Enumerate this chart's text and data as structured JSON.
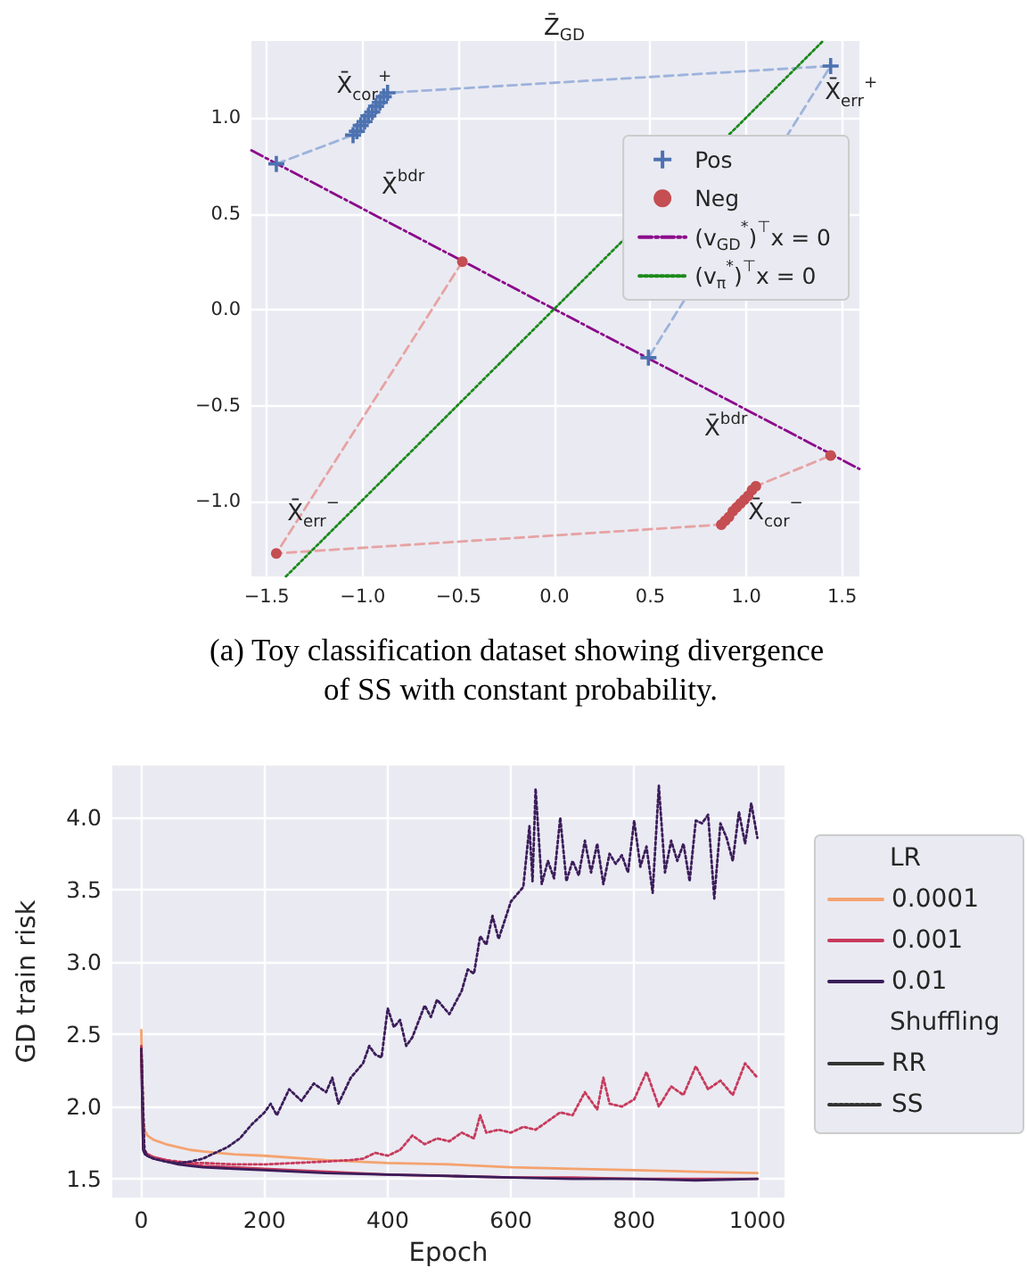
{
  "chart_data": [
    {
      "type": "scatter",
      "title": "Z̄$_{GD}$",
      "xlim": [
        -1.58,
        1.59
      ],
      "ylim": [
        -1.39,
        1.4
      ],
      "xticks": [
        {
          "value": -1.5,
          "label": "−1.5"
        },
        {
          "value": -1,
          "label": "−1.0"
        },
        {
          "value": -0.5,
          "label": "−0.5"
        },
        {
          "value": 0,
          "label": "0.0"
        },
        {
          "value": 0.5,
          "label": "0.5"
        },
        {
          "value": 1,
          "label": "1.0"
        },
        {
          "value": 1.5,
          "label": "1.5"
        }
      ],
      "yticks": [
        {
          "value": -1,
          "label": "−1.0"
        },
        {
          "value": -0.5,
          "label": "−0.5"
        },
        {
          "value": 0,
          "label": "0.0"
        },
        {
          "value": 0.5,
          "label": "0.5"
        },
        {
          "value": 1,
          "label": "1.0"
        }
      ],
      "grid": true,
      "legend": "top right",
      "series": [
        {
          "type": "line",
          "color": "#9db3dc",
          "line_style": "dashed",
          "marker": "none",
          "x": [
            -1.45,
            -1.05,
            -0.87,
            1.44,
            0.49
          ],
          "values": [
            0.76,
            0.91,
            1.13,
            1.27,
            -0.25
          ]
        },
        {
          "type": "line",
          "color": "#e6a3a3",
          "line_style": "dashed",
          "marker": "none",
          "x": [
            -0.48,
            -1.45,
            0.87,
            1.05,
            1.44
          ],
          "values": [
            0.25,
            -1.27,
            -1.12,
            -0.92,
            -0.76
          ]
        },
        {
          "name": "Pos",
          "type": "scatter",
          "color": "#4c72b0",
          "marker": "cross",
          "x": [
            -1.45,
            0.49,
            1.44,
            -1.05,
            -1.03,
            -1.01,
            -0.99,
            -0.97,
            -0.95,
            -0.93,
            -0.91,
            -0.89,
            -0.87
          ],
          "values": [
            0.76,
            -0.25,
            1.27,
            0.91,
            0.93,
            0.96,
            0.98,
            1.01,
            1.03,
            1.06,
            1.08,
            1.11,
            1.13
          ]
        },
        {
          "name": "Neg",
          "type": "scatter",
          "color": "#c44e52",
          "marker": "circle",
          "x": [
            -1.45,
            -0.48,
            1.44,
            0.87,
            0.89,
            0.91,
            0.93,
            0.95,
            0.97,
            0.99,
            1.01,
            1.03,
            1.05
          ],
          "values": [
            -1.27,
            0.25,
            -0.76,
            -1.12,
            -1.1,
            -1.08,
            -1.05,
            -1.03,
            -1.01,
            -0.99,
            -0.97,
            -0.94,
            -0.92
          ]
        },
        {
          "name": "(v$_{GD}$$^{*}$)$^{⊤}$x = 0",
          "type": "line",
          "color": "#8b0a8b",
          "line_style": "dashdot",
          "marker": "none",
          "x": [
            -1.58,
            1.59
          ],
          "values": [
            0.83,
            -0.83
          ]
        },
        {
          "name": "(v$_{π}$$^{*}$)$^{⊤}$x = 0",
          "type": "line",
          "color": "#1a8a1a",
          "line_style": "dotted",
          "marker": "none",
          "x": [
            -1.4,
            1.4
          ],
          "values": [
            -1.39,
            1.4
          ]
        }
      ],
      "annotations": [
        "X̄$_{cor}$$^{+}$",
        {
          "text": "X̄$_{err}$$^{+}$",
          "x": 1.41,
          "y": 1.13
        },
        "X̄$^{bdr}$",
        "X̄$^{bdr}$",
        "X̄$_{err}$$^{−}$",
        {
          "text": "X̄$_{cor}$$^{−}$",
          "x": 1.01,
          "y": -1.06
        },
        "(a) Toy classification dataset showing divergence of SS with constant probability."
      ]
    },
    {
      "type": "line",
      "xlabel": "Epoch",
      "ylabel": "GD train risk",
      "legend_title": "LR",
      "legend": "right",
      "grid": true,
      "marker": "none",
      "xlim": [
        -47,
        1044
      ],
      "ylim": [
        1.37,
        4.36
      ],
      "xticks": [
        0,
        200,
        400,
        600,
        800,
        1000
      ],
      "yticks": [
        {
          "value": 1.5,
          "label": "1.5"
        },
        {
          "value": 2,
          "label": "2.0"
        },
        {
          "value": 2.5,
          "label": "2.5"
        },
        {
          "value": 3,
          "label": "3.0"
        },
        {
          "value": 3.5,
          "label": "3.5"
        },
        {
          "value": 4,
          "label": "4.0"
        }
      ],
      "series": [
        {
          "name": "0.0001",
          "color": "#f4a36f",
          "line_style": "solid",
          "x": [
            0,
            3,
            6,
            10,
            20,
            40,
            60,
            80,
            100,
            150,
            200,
            300,
            400,
            500,
            600,
            700,
            800,
            900,
            1000
          ],
          "values": [
            2.53,
            1.9,
            1.83,
            1.8,
            1.77,
            1.74,
            1.72,
            1.7,
            1.69,
            1.67,
            1.66,
            1.63,
            1.61,
            1.6,
            1.58,
            1.57,
            1.56,
            1.55,
            1.54
          ]
        },
        {
          "name": "0.001",
          "color": "#c73a5b",
          "line_style": "solid",
          "x": [
            0,
            3,
            6,
            10,
            20,
            40,
            60,
            80,
            100,
            150,
            200,
            300,
            400,
            500,
            600,
            700,
            800,
            900,
            1000
          ],
          "values": [
            2.42,
            1.72,
            1.68,
            1.67,
            1.65,
            1.63,
            1.61,
            1.6,
            1.59,
            1.58,
            1.57,
            1.55,
            1.53,
            1.52,
            1.51,
            1.51,
            1.5,
            1.5,
            1.5
          ]
        },
        {
          "name": "0.01",
          "color": "#3b1d5a",
          "line_style": "solid",
          "x": [
            0,
            3,
            6,
            10,
            20,
            40,
            60,
            80,
            100,
            150,
            200,
            300,
            400,
            500,
            600,
            700,
            800,
            900,
            1000
          ],
          "values": [
            2.4,
            1.7,
            1.67,
            1.66,
            1.64,
            1.62,
            1.6,
            1.59,
            1.58,
            1.57,
            1.56,
            1.54,
            1.53,
            1.52,
            1.51,
            1.5,
            1.5,
            1.49,
            1.5
          ]
        },
        {
          "color": "#c73a5b",
          "line_style": "dotted",
          "x": [
            0,
            5,
            10,
            20,
            40,
            60,
            80,
            100,
            150,
            200,
            250,
            300,
            340,
            360,
            380,
            400,
            420,
            440,
            460,
            480,
            500,
            520,
            540,
            550,
            560,
            580,
            600,
            620,
            640,
            660,
            680,
            700,
            720,
            740,
            750,
            760,
            780,
            800,
            820,
            840,
            860,
            880,
            900,
            920,
            940,
            960,
            980,
            1000
          ],
          "values": [
            2.4,
            1.7,
            1.67,
            1.65,
            1.63,
            1.62,
            1.61,
            1.61,
            1.6,
            1.6,
            1.61,
            1.62,
            1.63,
            1.64,
            1.68,
            1.66,
            1.7,
            1.8,
            1.74,
            1.78,
            1.76,
            1.82,
            1.78,
            1.94,
            1.82,
            1.84,
            1.82,
            1.86,
            1.84,
            1.9,
            1.96,
            1.94,
            2.1,
            1.98,
            2.2,
            2.02,
            2,
            2.05,
            2.24,
            2,
            2.14,
            2.08,
            2.28,
            2.12,
            2.18,
            2.08,
            2.3,
            2.2
          ]
        },
        {
          "color": "#3b1d5a",
          "line_style": "dotted",
          "x": [
            0,
            5,
            10,
            20,
            40,
            60,
            80,
            100,
            120,
            140,
            160,
            180,
            200,
            210,
            220,
            240,
            260,
            280,
            300,
            310,
            320,
            340,
            360,
            370,
            380,
            390,
            400,
            410,
            420,
            430,
            440,
            460,
            470,
            480,
            500,
            510,
            520,
            530,
            540,
            550,
            560,
            570,
            580,
            600,
            620,
            630,
            635,
            640,
            650,
            660,
            670,
            680,
            690,
            700,
            710,
            720,
            730,
            740,
            750,
            760,
            770,
            780,
            790,
            800,
            810,
            820,
            830,
            840,
            850,
            860,
            870,
            880,
            890,
            900,
            910,
            920,
            930,
            940,
            950,
            960,
            970,
            980,
            990,
            1000
          ],
          "values": [
            2.4,
            1.7,
            1.66,
            1.64,
            1.62,
            1.61,
            1.62,
            1.64,
            1.68,
            1.72,
            1.78,
            1.88,
            1.96,
            2.02,
            1.94,
            2.12,
            2.04,
            2.16,
            2.1,
            2.2,
            2.02,
            2.2,
            2.3,
            2.42,
            2.36,
            2.34,
            2.68,
            2.55,
            2.6,
            2.42,
            2.48,
            2.7,
            2.62,
            2.74,
            2.64,
            2.72,
            2.8,
            2.95,
            2.92,
            3.18,
            3.12,
            3.32,
            3.16,
            3.42,
            3.52,
            3.94,
            3.56,
            4.2,
            3.54,
            3.7,
            3.58,
            4,
            3.56,
            3.7,
            3.6,
            3.84,
            3.62,
            3.82,
            3.54,
            3.75,
            3.68,
            3.74,
            3.62,
            3.98,
            3.66,
            3.8,
            3.48,
            4.22,
            3.62,
            3.84,
            3.7,
            3.82,
            3.56,
            3.98,
            3.96,
            4.02,
            3.44,
            3.96,
            3.86,
            3.7,
            4.04,
            3.82,
            4.1,
            3.86
          ]
        },
        {
          "name": "RR",
          "color": "#333333",
          "line_style": "solid"
        },
        {
          "name": "SS",
          "color": "#333333",
          "line_style": "dotted"
        }
      ],
      "annotations": [
        "Shuffling"
      ]
    }
  ]
}
